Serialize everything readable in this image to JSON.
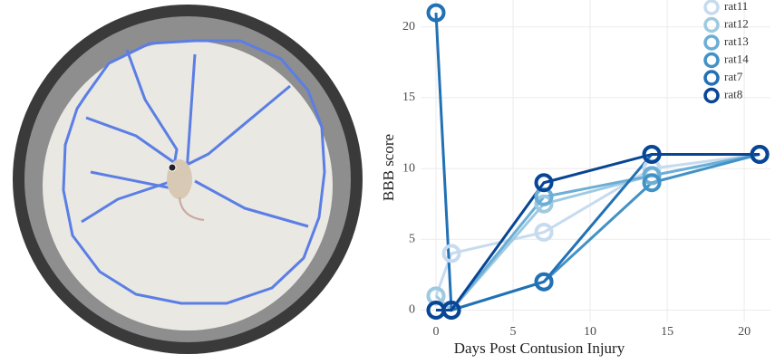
{
  "chart_data": {
    "type": "line",
    "x_label": "Days Post Contusion Injury",
    "y_label": "BBB score",
    "x": [
      0,
      1,
      7,
      14,
      21
    ],
    "series": [
      {
        "name": "rat11",
        "color": "#c6dbef",
        "values": [
          1,
          4,
          5.5,
          10,
          11
        ]
      },
      {
        "name": "rat12",
        "color": "#9ecae1",
        "values": [
          1,
          0,
          7.5,
          9.5,
          11
        ]
      },
      {
        "name": "rat13",
        "color": "#6baed6",
        "values": [
          0,
          0,
          8,
          9.5,
          11
        ]
      },
      {
        "name": "rat14",
        "color": "#4292c6",
        "values": [
          0,
          0,
          2,
          9,
          11
        ]
      },
      {
        "name": "rat7",
        "color": "#2171b5",
        "values": [
          21,
          0,
          2,
          11,
          11
        ]
      },
      {
        "name": "rat8",
        "color": "#084594",
        "values": [
          0,
          0,
          9,
          11,
          11
        ]
      }
    ],
    "xlim": [
      -1,
      21.7
    ],
    "ylim": [
      -0.8,
      21.9
    ],
    "xticks": [
      0,
      5,
      10,
      15,
      20
    ],
    "yticks": [
      0,
      5,
      10,
      15,
      20
    ],
    "grid": true,
    "legend": "top-right"
  }
}
